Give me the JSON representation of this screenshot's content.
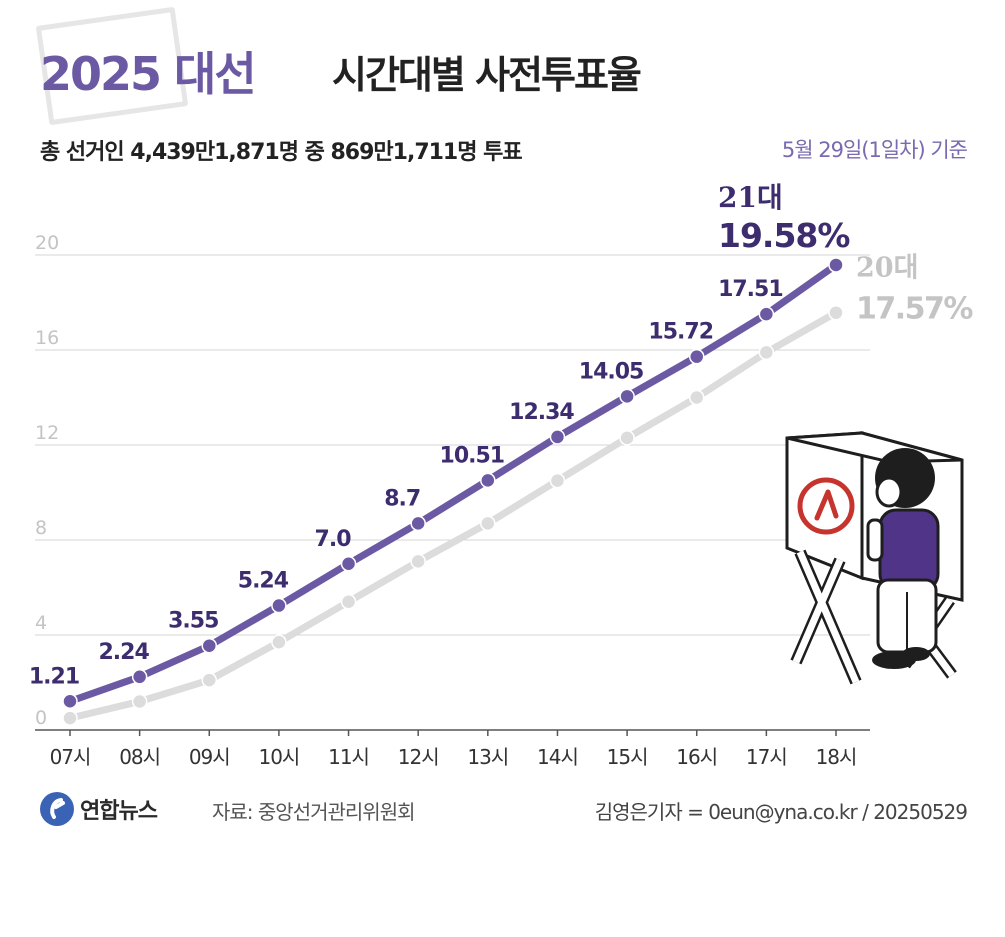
{
  "header": {
    "title_highlight": "2025 대선",
    "title_rest": "시간대별 사전투표율",
    "subtitle": "총 선거인 4,439만1,871명 중 869만1,711명 투표",
    "basis": "5월 29일(1일차) 기준"
  },
  "footer": {
    "logo_text": "연합뉴스",
    "source": "자료: 중앙선거관리위원회",
    "credit": "김영은기자 = 0eun@yna.co.kr / 20250529"
  },
  "colors": {
    "series21": "#6b5aa3",
    "series21_label": "#3d2d6e",
    "series20": "#dcdcdc",
    "series20_label": "#c4c4c4",
    "grid": "#d4d4d4",
    "axis_text": "#c4c4c4"
  },
  "chart_data": {
    "type": "line",
    "categories": [
      "07시",
      "08시",
      "09시",
      "10시",
      "11시",
      "12시",
      "13시",
      "14시",
      "15시",
      "16시",
      "17시",
      "18시"
    ],
    "ylim": [
      0,
      20
    ],
    "yticks": [
      0,
      4,
      8,
      12,
      16,
      20
    ],
    "grid": true,
    "series": [
      {
        "name": "21대",
        "values": [
          1.21,
          2.24,
          3.55,
          5.24,
          7.0,
          8.7,
          10.51,
          12.34,
          14.05,
          15.72,
          17.51,
          19.58
        ],
        "point_labels": [
          "1.21",
          "2.24",
          "3.55",
          "5.24",
          "7.0",
          "8.7",
          "10.51",
          "12.34",
          "14.05",
          "15.72",
          "17.51",
          ""
        ],
        "end_label": "19.58%"
      },
      {
        "name": "20대",
        "values": [
          0.5,
          1.2,
          2.1,
          3.7,
          5.4,
          7.1,
          8.7,
          10.5,
          12.3,
          14.0,
          15.9,
          17.57
        ],
        "point_labels": [],
        "end_label": "17.57%"
      }
    ]
  }
}
